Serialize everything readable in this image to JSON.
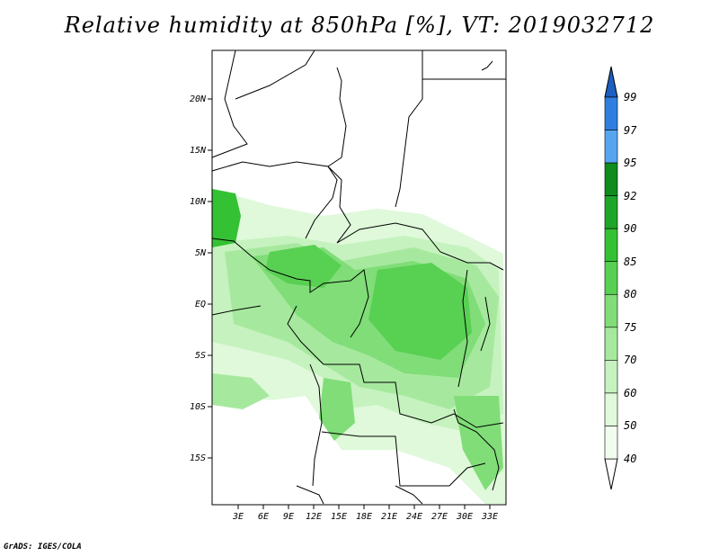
{
  "title": "Relative humidity at 850hPa [%], VT: 2019032712",
  "credit": "GrADS: IGES/COLA",
  "map": {
    "lat_labels": [
      "20N",
      "15N",
      "10N",
      "5N",
      "EQ",
      "5S",
      "10S",
      "15S"
    ],
    "lon_labels": [
      "3E",
      "6E",
      "9E",
      "12E",
      "15E",
      "18E",
      "21E",
      "24E",
      "27E",
      "30E",
      "33E"
    ]
  },
  "colorbar": {
    "labels": [
      "99",
      "97",
      "95",
      "92",
      "90",
      "85",
      "80",
      "75",
      "70",
      "60",
      "50",
      "40"
    ],
    "colors": [
      "#1c5fbf",
      "#2f7fe0",
      "#55a6ef",
      "#0f8c1c",
      "#1fa52a",
      "#34c134",
      "#58d052",
      "#80dd78",
      "#a6e99e",
      "#c6f2bf",
      "#dff9da",
      "#f2fdf0"
    ]
  }
}
